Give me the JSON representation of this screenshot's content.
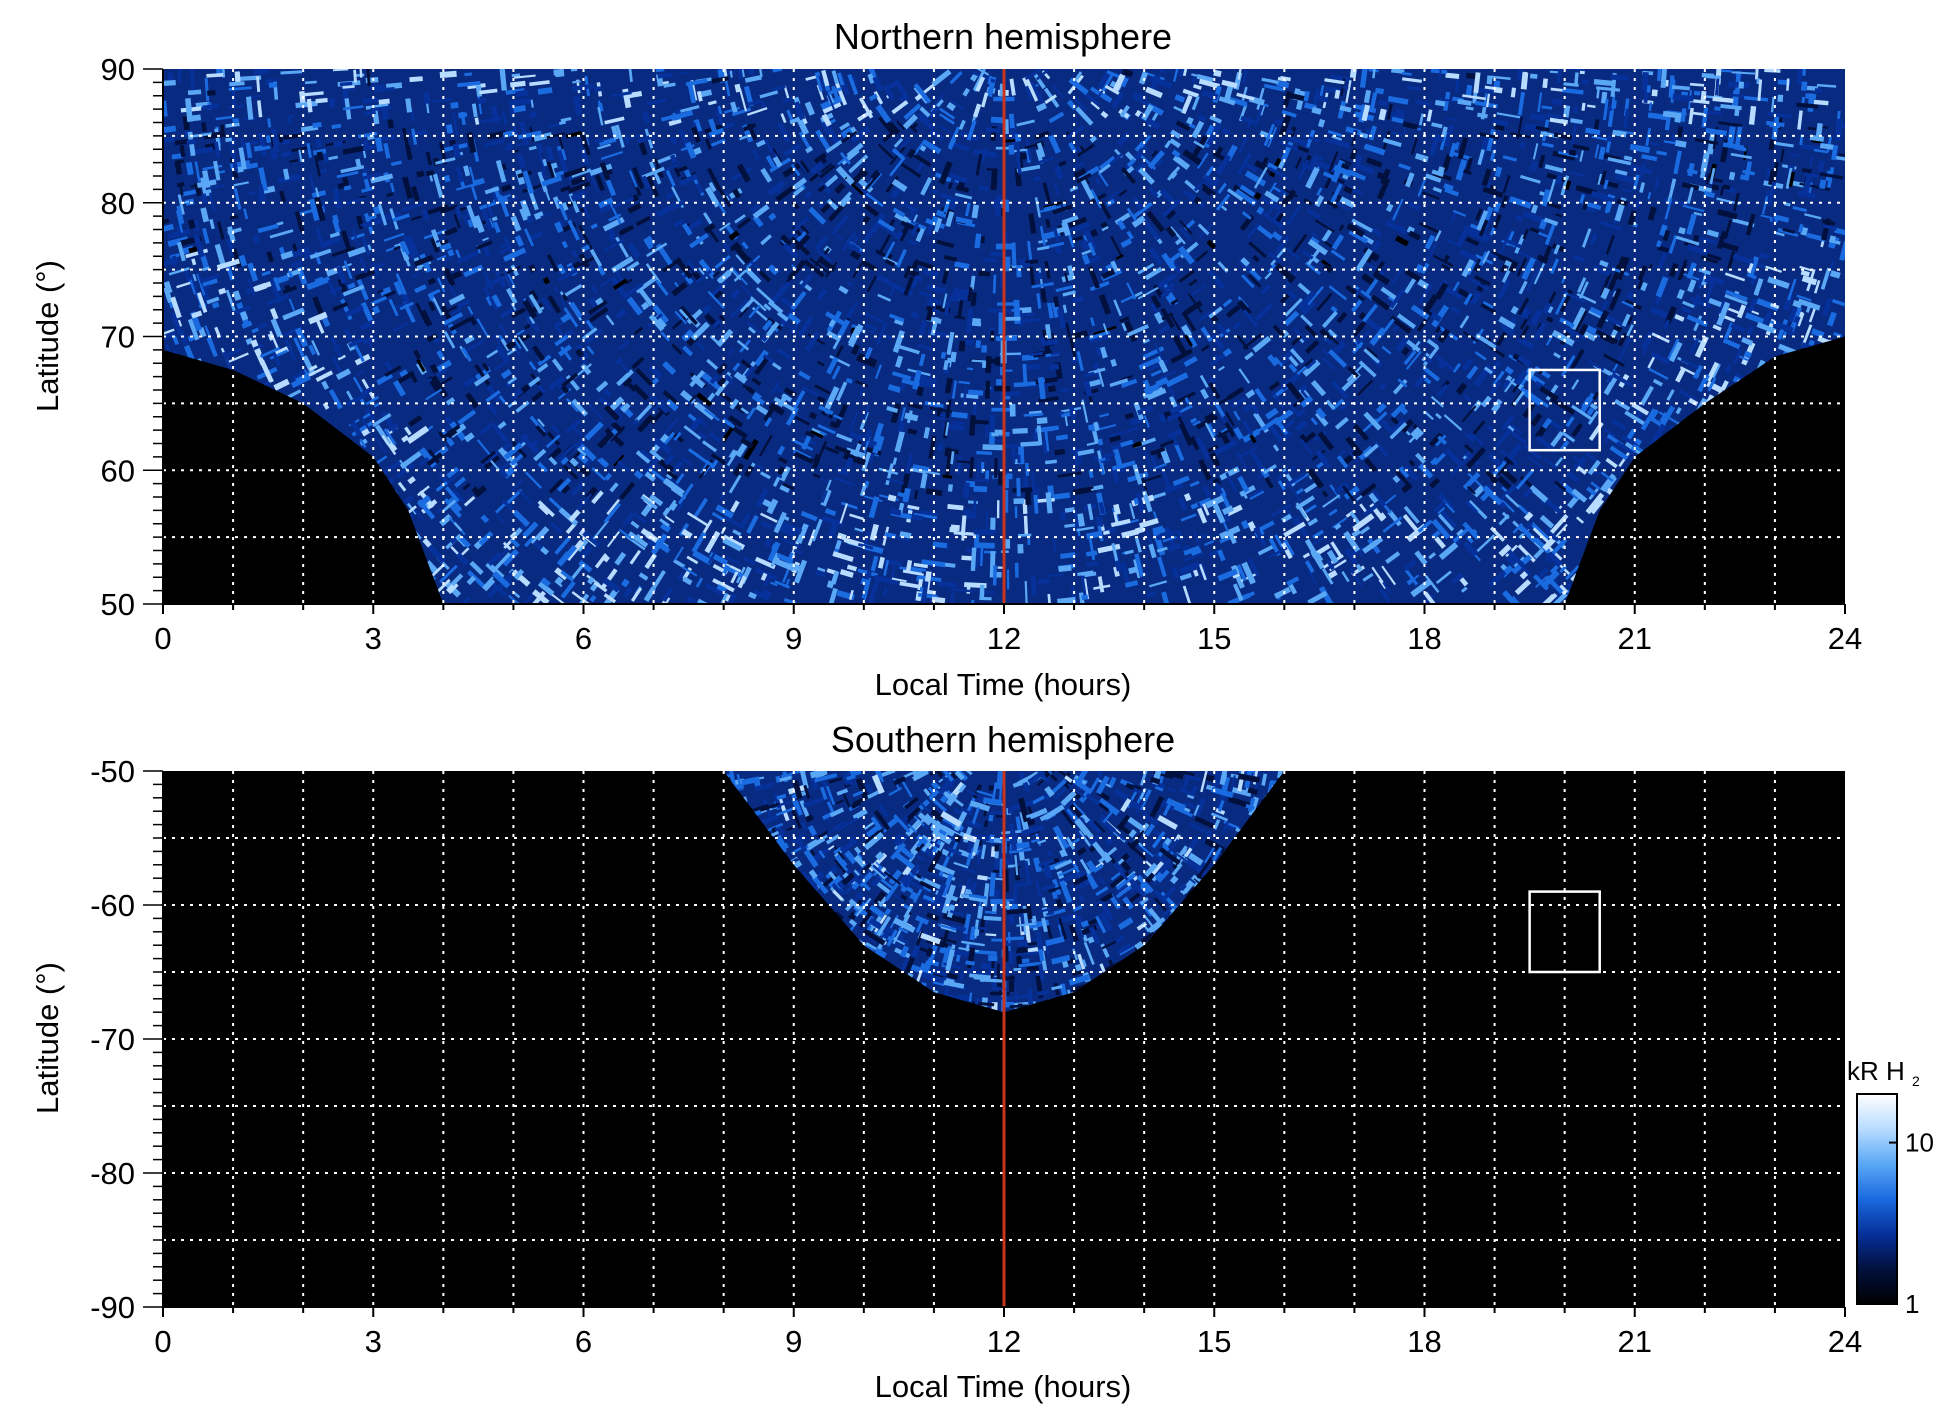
{
  "chart_data": [
    {
      "type": "heatmap",
      "title": "Northern hemisphere",
      "xlabel": "Local Time (hours)",
      "ylabel": "Latitude (°)",
      "xlim": [
        0,
        24
      ],
      "ylim": [
        50,
        90
      ],
      "xticks": [
        0,
        3,
        6,
        9,
        12,
        15,
        18,
        21,
        24
      ],
      "yticks": [
        50,
        60,
        70,
        80,
        90
      ],
      "grid": true,
      "background": "#000000",
      "coverage_lower_edge_latitude": [
        [
          0,
          69
        ],
        [
          1,
          67.5
        ],
        [
          2,
          65
        ],
        [
          3,
          61
        ],
        [
          3.5,
          57
        ],
        [
          4,
          50
        ],
        [
          20,
          50
        ],
        [
          20.5,
          57
        ],
        [
          21,
          61
        ],
        [
          22,
          65
        ],
        [
          23,
          68.5
        ],
        [
          24,
          70
        ]
      ],
      "marker_line_x": 12,
      "marker_line_color": "#c8341e",
      "highlight_box": {
        "x": [
          19.5,
          20.5
        ],
        "y": [
          61.5,
          67.5
        ],
        "color": "#ffffff"
      }
    },
    {
      "type": "heatmap",
      "title": "Southern hemisphere",
      "xlabel": "Local Time (hours)",
      "ylabel": "Latitude (°)",
      "xlim": [
        0,
        24
      ],
      "ylim": [
        -90,
        -50
      ],
      "xticks": [
        0,
        3,
        6,
        9,
        12,
        15,
        18,
        21,
        24
      ],
      "yticks": [
        -90,
        -80,
        -70,
        -60,
        -50
      ],
      "grid": true,
      "background": "#000000",
      "coverage_upper_region": {
        "x_range": [
          8,
          16
        ],
        "lower_edge_latitude": [
          [
            8,
            -50
          ],
          [
            9,
            -57
          ],
          [
            10,
            -63
          ],
          [
            11,
            -66.5
          ],
          [
            12,
            -68
          ],
          [
            13,
            -66.5
          ],
          [
            14,
            -63
          ],
          [
            15,
            -57
          ],
          [
            16,
            -50
          ]
        ]
      },
      "marker_line_x": 12,
      "marker_line_color": "#c8341e",
      "highlight_box": {
        "x": [
          19.5,
          20.5
        ],
        "y": [
          -65,
          -59
        ],
        "color": "#ffffff"
      }
    }
  ],
  "colorbar": {
    "label_main": "kR H",
    "label_sub": "2",
    "scale": "log",
    "range": [
      1,
      20
    ],
    "ticks": [
      "10",
      "1"
    ],
    "tick_values": [
      10,
      1
    ],
    "colors": [
      "#000000",
      "#02103d",
      "#06309a",
      "#1a6ae0",
      "#5aa8f5",
      "#b8dcff",
      "#ffffff"
    ]
  }
}
